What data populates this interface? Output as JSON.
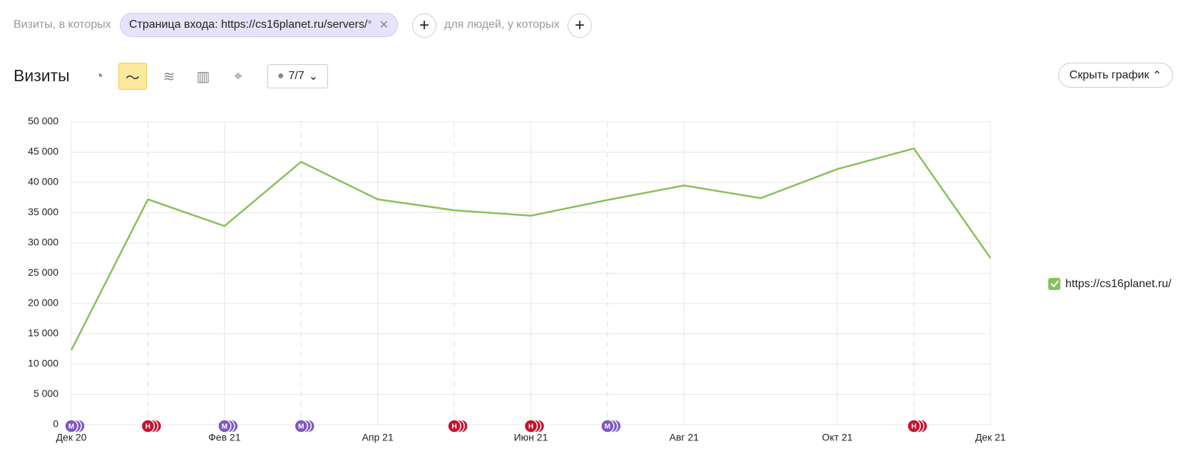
{
  "top": {
    "filter_label": "Визиты, в которых",
    "chip": "Страница входа: https://cs16planet.ru/servers/",
    "chip_wildcard": "*",
    "people_label": "для людей, у которых"
  },
  "toolbar": {
    "title": "Визиты",
    "annotations_count": "7/7",
    "hide_button": "Скрыть график"
  },
  "chart_data": {
    "type": "line",
    "categories": [
      "Дек 20",
      null,
      "Фев 21",
      null,
      "Апр 21",
      null,
      "Июн 21",
      null,
      "Авг 21",
      null,
      "Окт 21",
      null,
      "Дек 21"
    ],
    "series": [
      {
        "name": "https://cs16planet.ru/",
        "color": "#86c15a",
        "values": [
          12300,
          37200,
          32800,
          43400,
          37200,
          35400,
          34500,
          37100,
          39500,
          37400,
          42200,
          45600,
          27500
        ]
      }
    ],
    "ylim": [
      0,
      50000
    ],
    "yticks": [
      0,
      {
        "value": 5000,
        "label": "5 000"
      },
      {
        "value": 10000,
        "label": "10 000"
      },
      {
        "value": 15000,
        "label": "15 000"
      },
      {
        "value": 20000,
        "label": "20 000"
      },
      {
        "value": 25000,
        "label": "25 000"
      },
      {
        "value": 30000,
        "label": "30 000"
      },
      {
        "value": 35000,
        "label": "35 000"
      },
      {
        "value": 40000,
        "label": "40 000"
      },
      {
        "value": 45000,
        "label": "45 000"
      },
      {
        "value": 50000,
        "label": "50 000"
      }
    ],
    "grid": true,
    "annotations": [
      "М",
      "Н",
      "М",
      "М",
      null,
      "Н",
      "Н",
      "М",
      null,
      null,
      null,
      "Н",
      null
    ]
  }
}
